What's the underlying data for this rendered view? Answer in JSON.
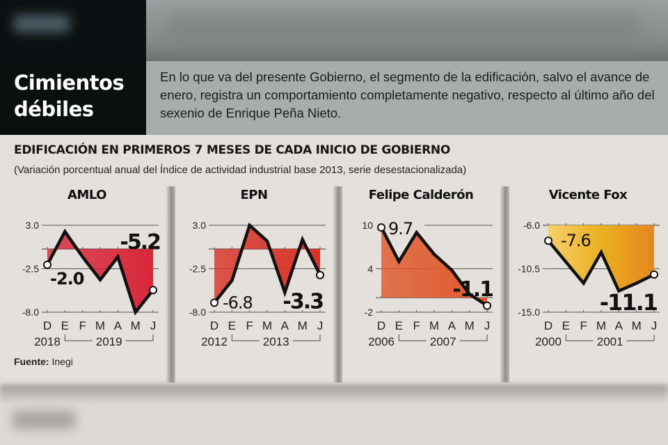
{
  "header": {
    "title_line1": "Cimientos",
    "title_line2": "débiles",
    "description": "En lo que va del presente Gobierno, el segmento de la edificación, salvo el avance de enero, registra un comportamiento completamente negativo, respecto al último año del sexenio de Enrique Peña Nieto."
  },
  "main_title": "EDIFICACIÓN EN PRIMEROS 7 MESES DE CADA INICIO DE GOBIERNO",
  "subtitle": "(Variación porcentual anual del Índice de actividad industrial base 2013, serie desestacionalizada)",
  "source": {
    "label": "Fuente:",
    "value": "Inegi"
  },
  "colors": {
    "amlo_fill": "#d8283a",
    "epn_fill": "#d93226",
    "calderon_fill": "#e0582a",
    "fox_fill": "#eba520",
    "line": "#111111"
  },
  "chart_data": [
    {
      "type": "area",
      "title": "AMLO",
      "categories": [
        "D",
        "E",
        "F",
        "M",
        "A",
        "M",
        "J"
      ],
      "years": [
        "2018",
        "2019"
      ],
      "values": [
        -2.0,
        2.2,
        -1.0,
        -3.9,
        -1.0,
        -8.0,
        -5.2
      ],
      "yticks": [
        "3.0",
        "-2.5",
        "-8.0"
      ],
      "ylim": [
        -8.0,
        3.0
      ],
      "baseline": 0,
      "labels": {
        "start": "-2.0",
        "end": "-5.2"
      }
    },
    {
      "type": "area",
      "title": "EPN",
      "categories": [
        "D",
        "E",
        "F",
        "M",
        "A",
        "M",
        "J"
      ],
      "years": [
        "2012",
        "2013"
      ],
      "values": [
        -6.8,
        -4.0,
        3.0,
        1.0,
        -5.5,
        1.2,
        -3.3
      ],
      "yticks": [
        "3.0",
        "-2.5",
        "-8.0"
      ],
      "ylim": [
        -8.0,
        3.0
      ],
      "baseline": 0,
      "labels": {
        "start": "-6.8",
        "end": "-3.3"
      }
    },
    {
      "type": "area",
      "title": "Felipe Calderón",
      "categories": [
        "D",
        "E",
        "F",
        "M",
        "A",
        "M",
        "J"
      ],
      "years": [
        "2006",
        "2007"
      ],
      "values": [
        9.7,
        5.0,
        9.0,
        6.0,
        3.8,
        0.5,
        -1.1
      ],
      "yticks": [
        "10",
        "4",
        "-2"
      ],
      "ylim": [
        -2,
        10
      ],
      "baseline": 0,
      "labels": {
        "start": "9.7",
        "end": "-1.1"
      }
    },
    {
      "type": "area",
      "title": "Vicente Fox",
      "categories": [
        "D",
        "E",
        "F",
        "M",
        "A",
        "M",
        "J"
      ],
      "years": [
        "2000",
        "2001"
      ],
      "values": [
        -7.6,
        -9.8,
        -12.0,
        -8.8,
        -12.8,
        -12.0,
        -11.1
      ],
      "yticks": [
        "-6.0",
        "-10.5",
        "-15.0"
      ],
      "ylim": [
        -15.0,
        -6.0
      ],
      "baseline": -6.0,
      "labels": {
        "start": "-7.6",
        "end": "-11.1"
      }
    }
  ]
}
